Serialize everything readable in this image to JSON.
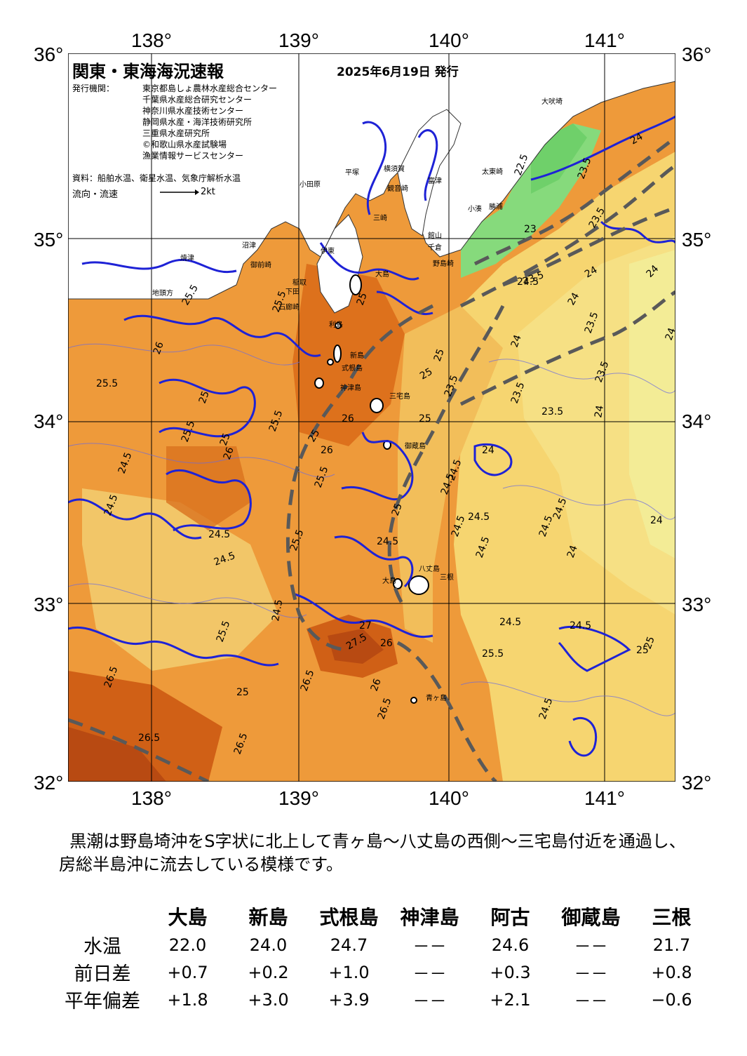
{
  "map": {
    "title": "関東・東海海況速報",
    "date": "2025年6月19日 発行",
    "issuers_label": "発行機関：",
    "issuers": [
      "東京都島しょ農林水産総合センター",
      "千葉県水産総合研究センター",
      "神奈川県水産技術センター",
      "静岡県水産・海洋技術研究所",
      "三重県水産研究所",
      "©和歌山県水産試験場",
      "漁業情報サービスセンター"
    ],
    "sources": "資料：船舶水温、衛星水温、気象庁解析水温",
    "flow_label": "流向・流速",
    "flow_scale": "2kt",
    "lon_labels": [
      "138°",
      "139°",
      "140°",
      "141°"
    ],
    "lat_labels": [
      "36°",
      "35°",
      "34°",
      "33°",
      "32°"
    ],
    "colors": {
      "sea_warm": "#ee9a3a",
      "sea_hot": "#d96a18",
      "sea_hottest": "#b84a12",
      "sea_mild": "#f2be5a",
      "sea_cool": "#f6dc80",
      "sea_coolest": "#f3ec96",
      "coastal_cold": "#7ed67a",
      "land": "#ffffff",
      "isotherm_1deg": "#1e22d6",
      "isotherm_half": "#4a4ad8",
      "kuroshio_axis": "#595959"
    },
    "place_names": [
      "大島",
      "利島",
      "新島",
      "式根島",
      "神津島",
      "三宅島",
      "御蔵島",
      "八丈島",
      "青ヶ島",
      "野島崎",
      "大吠埼",
      "太東崎",
      "勝浦",
      "小湊",
      "館山",
      "千倉",
      "富津",
      "横須賀",
      "観音崎",
      "三崎",
      "平塚",
      "小田原",
      "伊東",
      "稲取",
      "石廊崎",
      "下田",
      "御前崎",
      "焼津",
      "沼津",
      "地頭方",
      "大島",
      "三根"
    ],
    "isotherm_labels": [
      "22.5",
      "23",
      "23.5",
      "24",
      "24.5",
      "25",
      "25.5",
      "26",
      "26.5",
      "27",
      "27.5"
    ]
  },
  "summary": "黒潮は野島埼沖をS字状に北上して青ヶ島～八丈島の西側～三宅島付近を通過し、房総半島沖に流去している模様です。",
  "table": {
    "stations": [
      "大島",
      "新島",
      "式根島",
      "神津島",
      "阿古",
      "御蔵島",
      "三根"
    ],
    "rows": [
      {
        "label": "水温",
        "values": [
          "22.0",
          "24.0",
          "24.7",
          "－－",
          "24.6",
          "－－",
          "21.7"
        ]
      },
      {
        "label": "前日差",
        "values": [
          "+0.7",
          "+0.2",
          "+1.0",
          "－－",
          "+0.3",
          "－－",
          "+0.8"
        ]
      },
      {
        "label": "平年偏差",
        "values": [
          "+1.8",
          "+3.0",
          "+3.9",
          "－－",
          "+2.1",
          "－－",
          "−0.6"
        ]
      }
    ]
  }
}
